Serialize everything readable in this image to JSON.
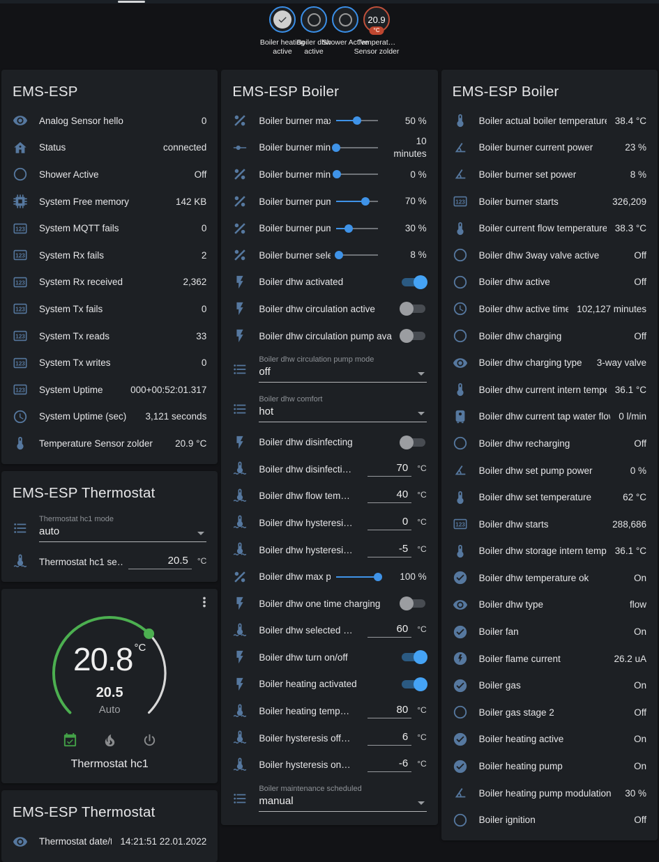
{
  "theme": {
    "background": "#121316",
    "card": "#1d2024",
    "accent_blue": "#3f93e8",
    "icon_blue": "#56789f",
    "badge_ring_blue": "#3a8fe8",
    "temp_badge_ring": "#c0503a",
    "temp_badge_pill": "#bf4730",
    "toggle_on": "#45a3f5",
    "arc_green": "#4caf50",
    "text": "#e6e6e8"
  },
  "badges": [
    {
      "kind": "binary_on",
      "icon": "check",
      "label": "Boiler heating active"
    },
    {
      "kind": "binary_off",
      "icon": "circle-outline",
      "label": "Boiler dhw active"
    },
    {
      "kind": "binary_off",
      "icon": "circle-outline",
      "label": "Shower Active"
    },
    {
      "kind": "value",
      "value": "20.9",
      "unit": "°C",
      "label": "Temperat… Sensor zolder"
    }
  ],
  "columns": {
    "left": [
      {
        "title": "EMS-ESP",
        "rows": [
          {
            "type": "sensor",
            "icon": "eye",
            "name": "Analog Sensor hello",
            "value": "0"
          },
          {
            "type": "sensor",
            "icon": "home",
            "name": "Status",
            "value": "connected"
          },
          {
            "type": "sensor",
            "icon": "circle-outline",
            "name": "Shower Active",
            "value": "Off"
          },
          {
            "type": "sensor",
            "icon": "chip",
            "name": "System Free memory",
            "value": "142 KB"
          },
          {
            "type": "sensor",
            "icon": "counter",
            "name": "System MQTT fails",
            "value": "0"
          },
          {
            "type": "sensor",
            "icon": "counter",
            "name": "System Rx fails",
            "value": "2"
          },
          {
            "type": "sensor",
            "icon": "counter",
            "name": "System Rx received",
            "value": "2,362"
          },
          {
            "type": "sensor",
            "icon": "counter",
            "name": "System Tx fails",
            "value": "0"
          },
          {
            "type": "sensor",
            "icon": "counter",
            "name": "System Tx reads",
            "value": "33"
          },
          {
            "type": "sensor",
            "icon": "counter",
            "name": "System Tx writes",
            "value": "0"
          },
          {
            "type": "sensor",
            "icon": "counter",
            "name": "System Uptime",
            "value": "000+00:52:01.317"
          },
          {
            "type": "sensor",
            "icon": "clock",
            "name": "System Uptime (sec)",
            "value": "3,121 seconds"
          },
          {
            "type": "sensor",
            "icon": "thermometer",
            "name": "Temperature Sensor zolder",
            "value": "20.9 °C"
          }
        ]
      },
      {
        "title": "EMS-ESP Thermostat",
        "rows": [
          {
            "type": "select",
            "icon": "list",
            "label": "Thermostat hc1 mode",
            "value": "auto"
          },
          {
            "type": "number",
            "icon": "thermometer-water",
            "name": "Thermostat hc1 se…",
            "value": "20.5",
            "unit": "°C",
            "wide": true
          }
        ]
      },
      {
        "thermostat": {
          "current": "20.8",
          "unit": "°C",
          "target": "20.5",
          "mode_label": "Auto",
          "name": "Thermostat hc1",
          "modes": [
            {
              "icon": "calendar-check",
              "active": true
            },
            {
              "icon": "fire",
              "active": false
            },
            {
              "icon": "power",
              "active": false
            }
          ]
        }
      },
      {
        "title": "EMS-ESP Thermostat",
        "rows": [
          {
            "type": "sensor",
            "icon": "eye",
            "name": "Thermostat date/time",
            "value": "14:21:51 22.01.2022"
          }
        ]
      }
    ],
    "middle": [
      {
        "title": "EMS-ESP Boiler",
        "rows": [
          {
            "type": "slider",
            "icon": "percent",
            "name": "Boiler burner max po…",
            "pct": 50,
            "value": "50 %"
          },
          {
            "type": "slider",
            "icon": "ray",
            "name": "Boiler burner min p…",
            "pct": 0,
            "value": "10 minutes"
          },
          {
            "type": "slider",
            "icon": "percent",
            "name": "Boiler burner min po…",
            "pct": 2,
            "value": "0 %"
          },
          {
            "type": "slider",
            "icon": "percent",
            "name": "Boiler burner pump …",
            "pct": 70,
            "value": "70 %"
          },
          {
            "type": "slider",
            "icon": "percent",
            "name": "Boiler burner pump …",
            "pct": 31,
            "value": "30 %"
          },
          {
            "type": "slider",
            "icon": "percent",
            "name": "Boiler burner selecte…",
            "pct": 7,
            "value": "8 %"
          },
          {
            "type": "toggle",
            "icon": "flash",
            "name": "Boiler dhw activated",
            "on": true
          },
          {
            "type": "toggle",
            "icon": "flash",
            "name": "Boiler dhw circulation active",
            "on": false
          },
          {
            "type": "toggle",
            "icon": "flash",
            "name": "Boiler dhw circulation pump available",
            "on": false
          },
          {
            "type": "select",
            "icon": "list",
            "label": "Boiler dhw circulation pump mode",
            "value": "off"
          },
          {
            "type": "select",
            "icon": "list",
            "label": "Boiler dhw comfort",
            "value": "hot"
          },
          {
            "type": "toggle",
            "icon": "flash",
            "name": "Boiler dhw disinfecting",
            "on": false
          },
          {
            "type": "number",
            "icon": "thermometer-water",
            "name": "Boiler dhw disinfecti…",
            "value": "70",
            "unit": "°C"
          },
          {
            "type": "number",
            "icon": "thermometer-water",
            "name": "Boiler dhw flow tem…",
            "value": "40",
            "unit": "°C"
          },
          {
            "type": "number",
            "icon": "thermometer-water",
            "name": "Boiler dhw hysteresi…",
            "value": "0",
            "unit": "°C"
          },
          {
            "type": "number",
            "icon": "thermometer-water",
            "name": "Boiler dhw hysteresi…",
            "value": "-5",
            "unit": "°C"
          },
          {
            "type": "slider",
            "icon": "percent",
            "name": "Boiler dhw max power",
            "pct": 100,
            "value": "100 %"
          },
          {
            "type": "toggle",
            "icon": "flash",
            "name": "Boiler dhw one time charging",
            "on": false
          },
          {
            "type": "number",
            "icon": "thermometer-water",
            "name": "Boiler dhw selected …",
            "value": "60",
            "unit": "°C"
          },
          {
            "type": "toggle",
            "icon": "flash",
            "name": "Boiler dhw turn on/off",
            "on": true
          },
          {
            "type": "toggle",
            "icon": "flash",
            "name": "Boiler heating activated",
            "on": true
          },
          {
            "type": "number",
            "icon": "thermometer-water",
            "name": "Boiler heating temp…",
            "value": "80",
            "unit": "°C"
          },
          {
            "type": "number",
            "icon": "thermometer-water",
            "name": "Boiler hysteresis off…",
            "value": "6",
            "unit": "°C"
          },
          {
            "type": "number",
            "icon": "thermometer-water",
            "name": "Boiler hysteresis on…",
            "value": "-6",
            "unit": "°C"
          },
          {
            "type": "select",
            "icon": "list",
            "label": "Boiler maintenance scheduled",
            "value": "manual"
          }
        ]
      }
    ],
    "right": [
      {
        "title": "EMS-ESP Boiler",
        "rows": [
          {
            "type": "sensor",
            "icon": "thermometer",
            "name": "Boiler actual boiler temperature",
            "value": "38.4 °C"
          },
          {
            "type": "sensor",
            "icon": "angle",
            "name": "Boiler burner current power",
            "value": "23 %"
          },
          {
            "type": "sensor",
            "icon": "angle",
            "name": "Boiler burner set power",
            "value": "8 %"
          },
          {
            "type": "sensor",
            "icon": "counter",
            "name": "Boiler burner starts",
            "value": "326,209"
          },
          {
            "type": "sensor",
            "icon": "thermometer",
            "name": "Boiler current flow temperature",
            "value": "38.3 °C"
          },
          {
            "type": "sensor",
            "icon": "circle-outline",
            "name": "Boiler dhw 3way valve active",
            "value": "Off"
          },
          {
            "type": "sensor",
            "icon": "circle-outline",
            "name": "Boiler dhw active",
            "value": "Off"
          },
          {
            "type": "sensor",
            "icon": "clock",
            "name": "Boiler dhw active time",
            "value": "102,127 minutes"
          },
          {
            "type": "sensor",
            "icon": "circle-outline",
            "name": "Boiler dhw charging",
            "value": "Off"
          },
          {
            "type": "sensor",
            "icon": "eye",
            "name": "Boiler dhw charging type",
            "value": "3-way valve"
          },
          {
            "type": "sensor",
            "icon": "thermometer",
            "name": "Boiler dhw current intern temperature",
            "value": "36.1 °C"
          },
          {
            "type": "sensor",
            "icon": "water-boiler",
            "name": "Boiler dhw current tap water flow",
            "value": "0 l/min"
          },
          {
            "type": "sensor",
            "icon": "circle-outline",
            "name": "Boiler dhw recharging",
            "value": "Off"
          },
          {
            "type": "sensor",
            "icon": "angle",
            "name": "Boiler dhw set pump power",
            "value": "0 %"
          },
          {
            "type": "sensor",
            "icon": "thermometer",
            "name": "Boiler dhw set temperature",
            "value": "62 °C"
          },
          {
            "type": "sensor",
            "icon": "counter",
            "name": "Boiler dhw starts",
            "value": "288,686"
          },
          {
            "type": "sensor",
            "icon": "thermometer",
            "name": "Boiler dhw storage intern temperature",
            "value": "36.1 °C"
          },
          {
            "type": "sensor",
            "icon": "check-circle",
            "name": "Boiler dhw temperature ok",
            "value": "On"
          },
          {
            "type": "sensor",
            "icon": "eye",
            "name": "Boiler dhw type",
            "value": "flow"
          },
          {
            "type": "sensor",
            "icon": "check-circle",
            "name": "Boiler fan",
            "value": "On"
          },
          {
            "type": "sensor",
            "icon": "flash-circle",
            "name": "Boiler flame current",
            "value": "26.2 uA"
          },
          {
            "type": "sensor",
            "icon": "check-circle",
            "name": "Boiler gas",
            "value": "On"
          },
          {
            "type": "sensor",
            "icon": "circle-outline",
            "name": "Boiler gas stage 2",
            "value": "Off"
          },
          {
            "type": "sensor",
            "icon": "check-circle",
            "name": "Boiler heating active",
            "value": "On"
          },
          {
            "type": "sensor",
            "icon": "check-circle",
            "name": "Boiler heating pump",
            "value": "On"
          },
          {
            "type": "sensor",
            "icon": "angle",
            "name": "Boiler heating pump modulation",
            "value": "30 %"
          },
          {
            "type": "sensor",
            "icon": "circle-outline",
            "name": "Boiler ignition",
            "value": "Off"
          }
        ]
      }
    ]
  }
}
